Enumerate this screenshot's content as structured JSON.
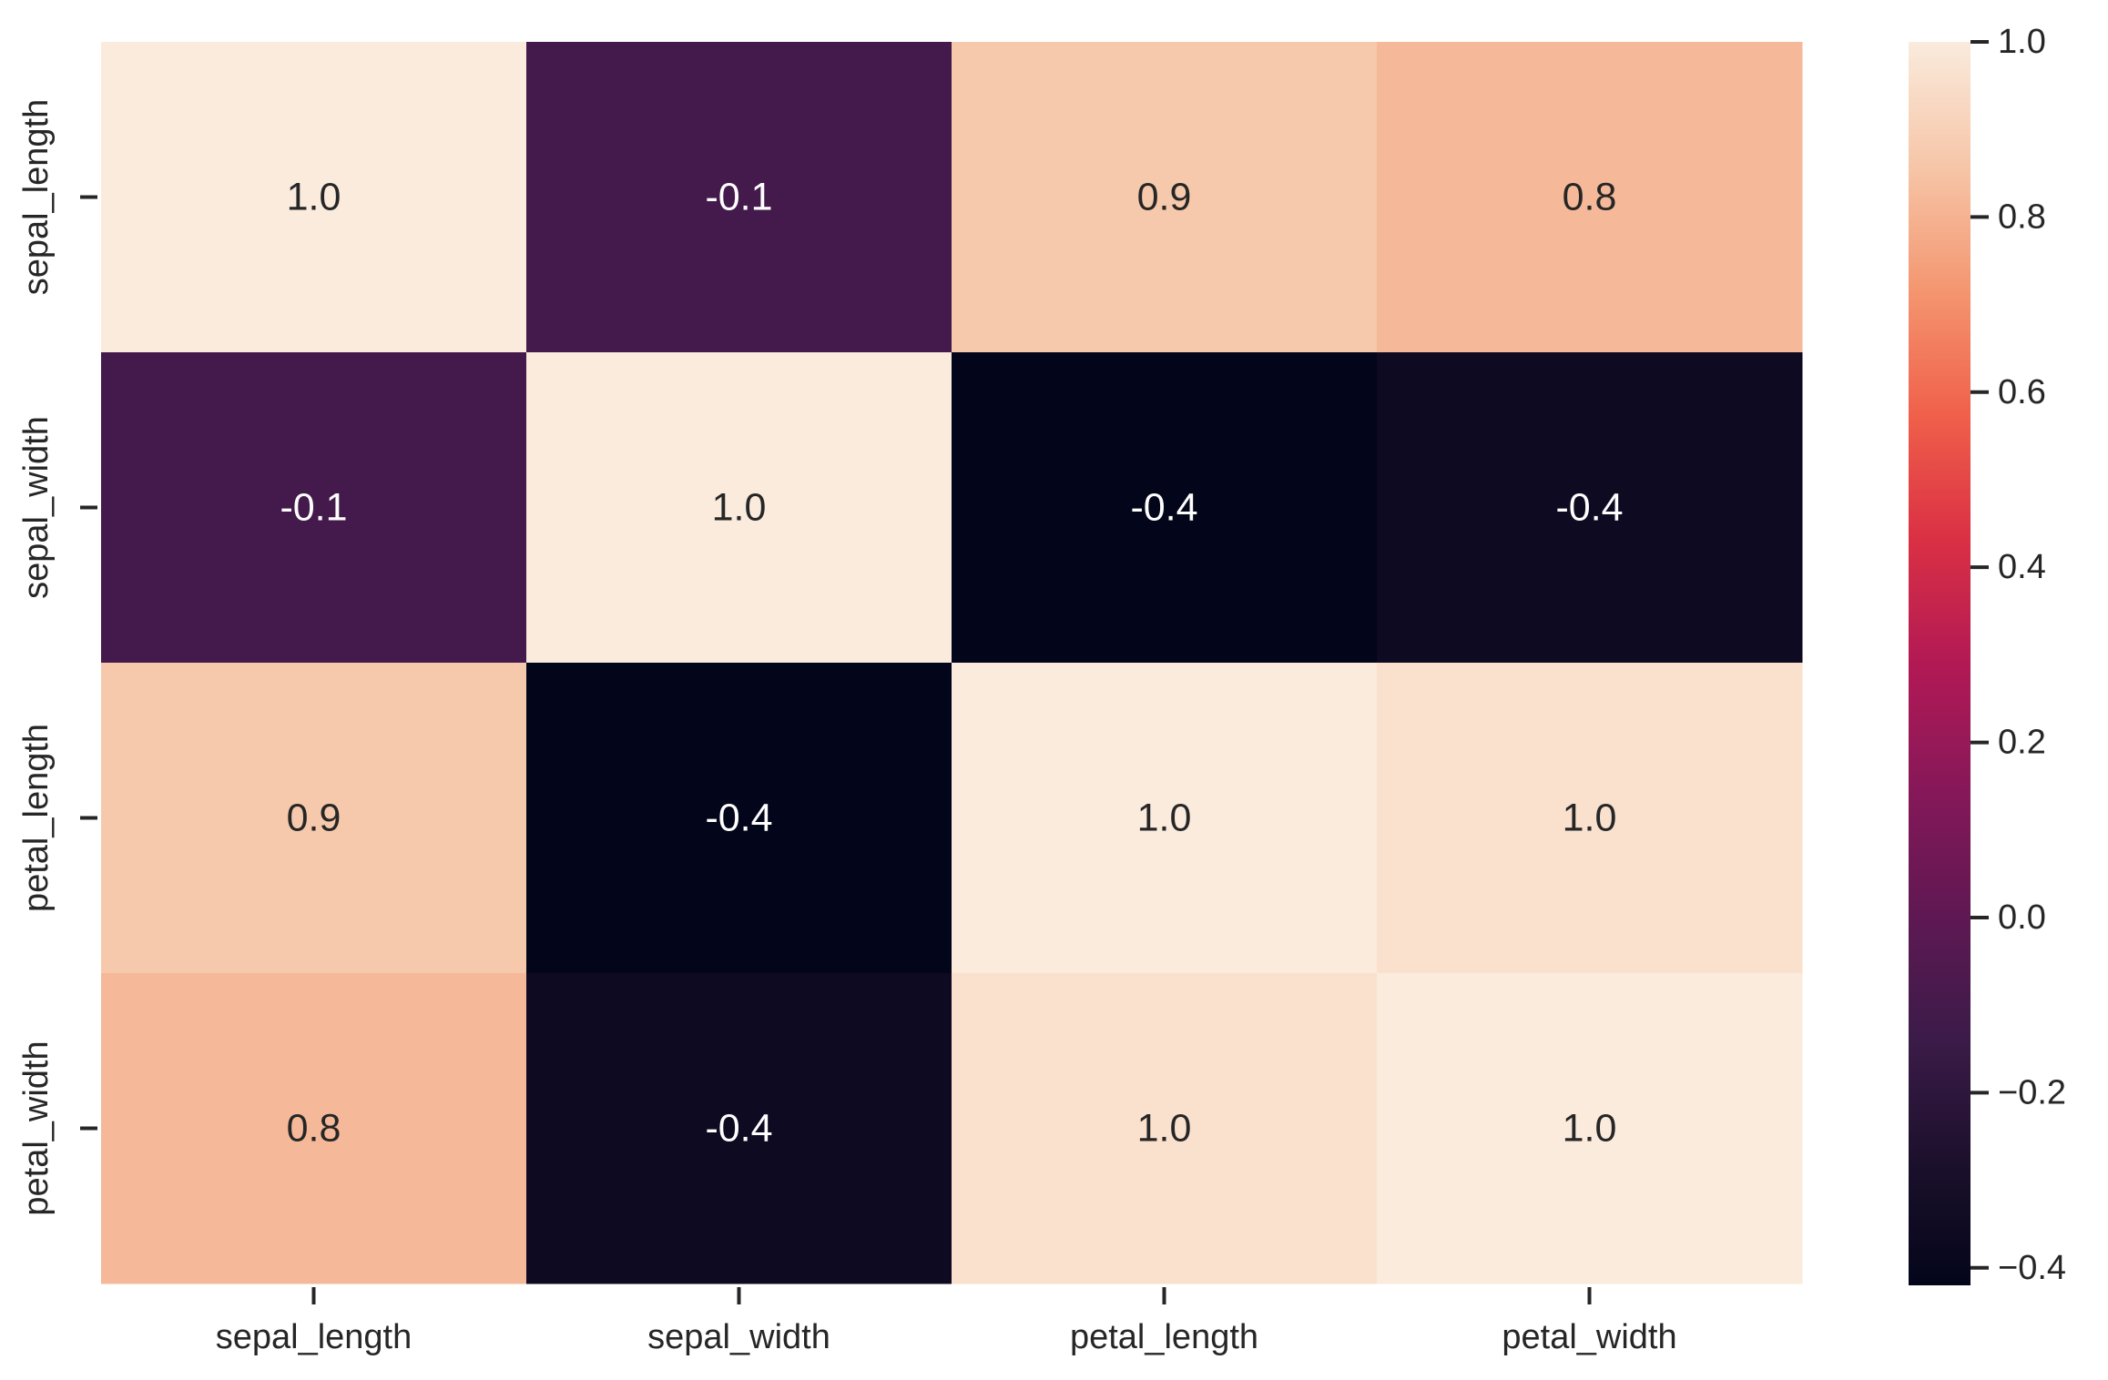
{
  "chart_data": {
    "type": "heatmap",
    "title": "",
    "xlabel": "",
    "ylabel": "",
    "x_labels": [
      "sepal_length",
      "sepal_width",
      "petal_length",
      "petal_width"
    ],
    "y_labels": [
      "sepal_length",
      "sepal_width",
      "petal_length",
      "petal_width"
    ],
    "values": [
      [
        1.0,
        -0.11,
        0.87,
        0.82
      ],
      [
        -0.11,
        1.0,
        -0.42,
        -0.36
      ],
      [
        0.87,
        -0.42,
        1.0,
        0.96
      ],
      [
        0.82,
        -0.36,
        0.96,
        1.0
      ]
    ],
    "annotations": [
      [
        "1.0",
        "-0.1",
        "0.9",
        "0.8"
      ],
      [
        "-0.1",
        "1.0",
        "-0.4",
        "-0.4"
      ],
      [
        "0.9",
        "-0.4",
        "1.0",
        "1.0"
      ],
      [
        "0.8",
        "-0.4",
        "1.0",
        "1.0"
      ]
    ],
    "colormap": "rocket",
    "colorbar": {
      "range": [
        -0.42,
        1.0
      ],
      "ticks": [
        -0.4,
        -0.2,
        0.0,
        0.2,
        0.4,
        0.6,
        0.8,
        1.0
      ],
      "tick_labels": [
        "−0.4",
        "−0.2",
        "0.0",
        "0.2",
        "0.4",
        "0.6",
        "0.8",
        "1.0"
      ]
    },
    "grid": false,
    "legend": "colorbar-right"
  }
}
